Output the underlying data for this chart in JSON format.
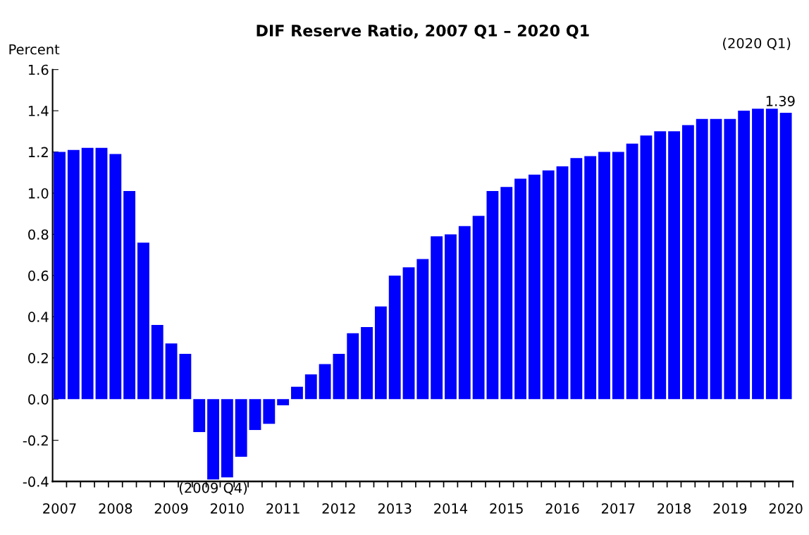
{
  "chart_data": {
    "type": "bar",
    "title": "DIF Reserve Ratio, 2007 Q1 – 2020 Q1",
    "ylabel": "Percent",
    "categories": [
      "2007",
      null,
      null,
      null,
      "2008",
      null,
      null,
      null,
      "2009",
      null,
      null,
      null,
      "2010",
      null,
      null,
      null,
      "2011",
      null,
      null,
      null,
      "2012",
      null,
      null,
      null,
      "2013",
      null,
      null,
      null,
      "2014",
      null,
      null,
      null,
      "2015",
      null,
      null,
      null,
      "2016",
      null,
      null,
      null,
      "2017",
      null,
      null,
      null,
      "2018",
      null,
      null,
      null,
      "2019",
      null,
      null,
      null,
      "2020"
    ],
    "values": [
      1.2,
      1.21,
      1.22,
      1.22,
      1.19,
      1.01,
      0.76,
      0.36,
      0.27,
      0.22,
      -0.16,
      -0.39,
      -0.38,
      -0.28,
      -0.15,
      -0.12,
      -0.03,
      0.06,
      0.12,
      0.17,
      0.22,
      0.32,
      0.35,
      0.45,
      0.6,
      0.64,
      0.68,
      0.79,
      0.8,
      0.84,
      0.89,
      1.01,
      1.03,
      1.07,
      1.09,
      1.11,
      1.13,
      1.17,
      1.18,
      1.2,
      1.2,
      1.24,
      1.28,
      1.3,
      1.3,
      1.33,
      1.36,
      1.36,
      1.36,
      1.4,
      1.41,
      1.41,
      1.39
    ],
    "value_labels": [
      null,
      null,
      null,
      null,
      null,
      null,
      null,
      null,
      null,
      null,
      null,
      null,
      null,
      null,
      null,
      null,
      null,
      null,
      null,
      null,
      null,
      null,
      null,
      null,
      null,
      null,
      null,
      null,
      null,
      null,
      null,
      null,
      null,
      null,
      null,
      null,
      null,
      null,
      null,
      null,
      null,
      null,
      null,
      null,
      null,
      null,
      null,
      null,
      null,
      null,
      null,
      null,
      "1.39"
    ],
    "color": "#0000ff",
    "annotations": [
      {
        "text": "(2009 Q4)",
        "y": -0.39
      },
      "(2020 Q1)"
    ],
    "ylim": [
      -0.4,
      1.6
    ],
    "yticks": [
      {
        "value": -0.4,
        "label": "-0.4"
      },
      {
        "value": -0.2,
        "label": "-0.2"
      },
      {
        "value": 0,
        "label": "0.0"
      },
      {
        "value": 0.2,
        "label": "0.2"
      },
      {
        "value": 0.4,
        "label": "0.4"
      },
      {
        "value": 0.6,
        "label": "0.6"
      },
      {
        "value": 0.8,
        "label": "0.8"
      },
      {
        "value": 1.0,
        "label": "1.0"
      },
      {
        "value": 1.2,
        "label": "1.2"
      },
      {
        "value": 1.4,
        "label": "1.4"
      },
      {
        "value": 1.6,
        "label": "1.6"
      }
    ],
    "grid": false,
    "legend": false
  }
}
